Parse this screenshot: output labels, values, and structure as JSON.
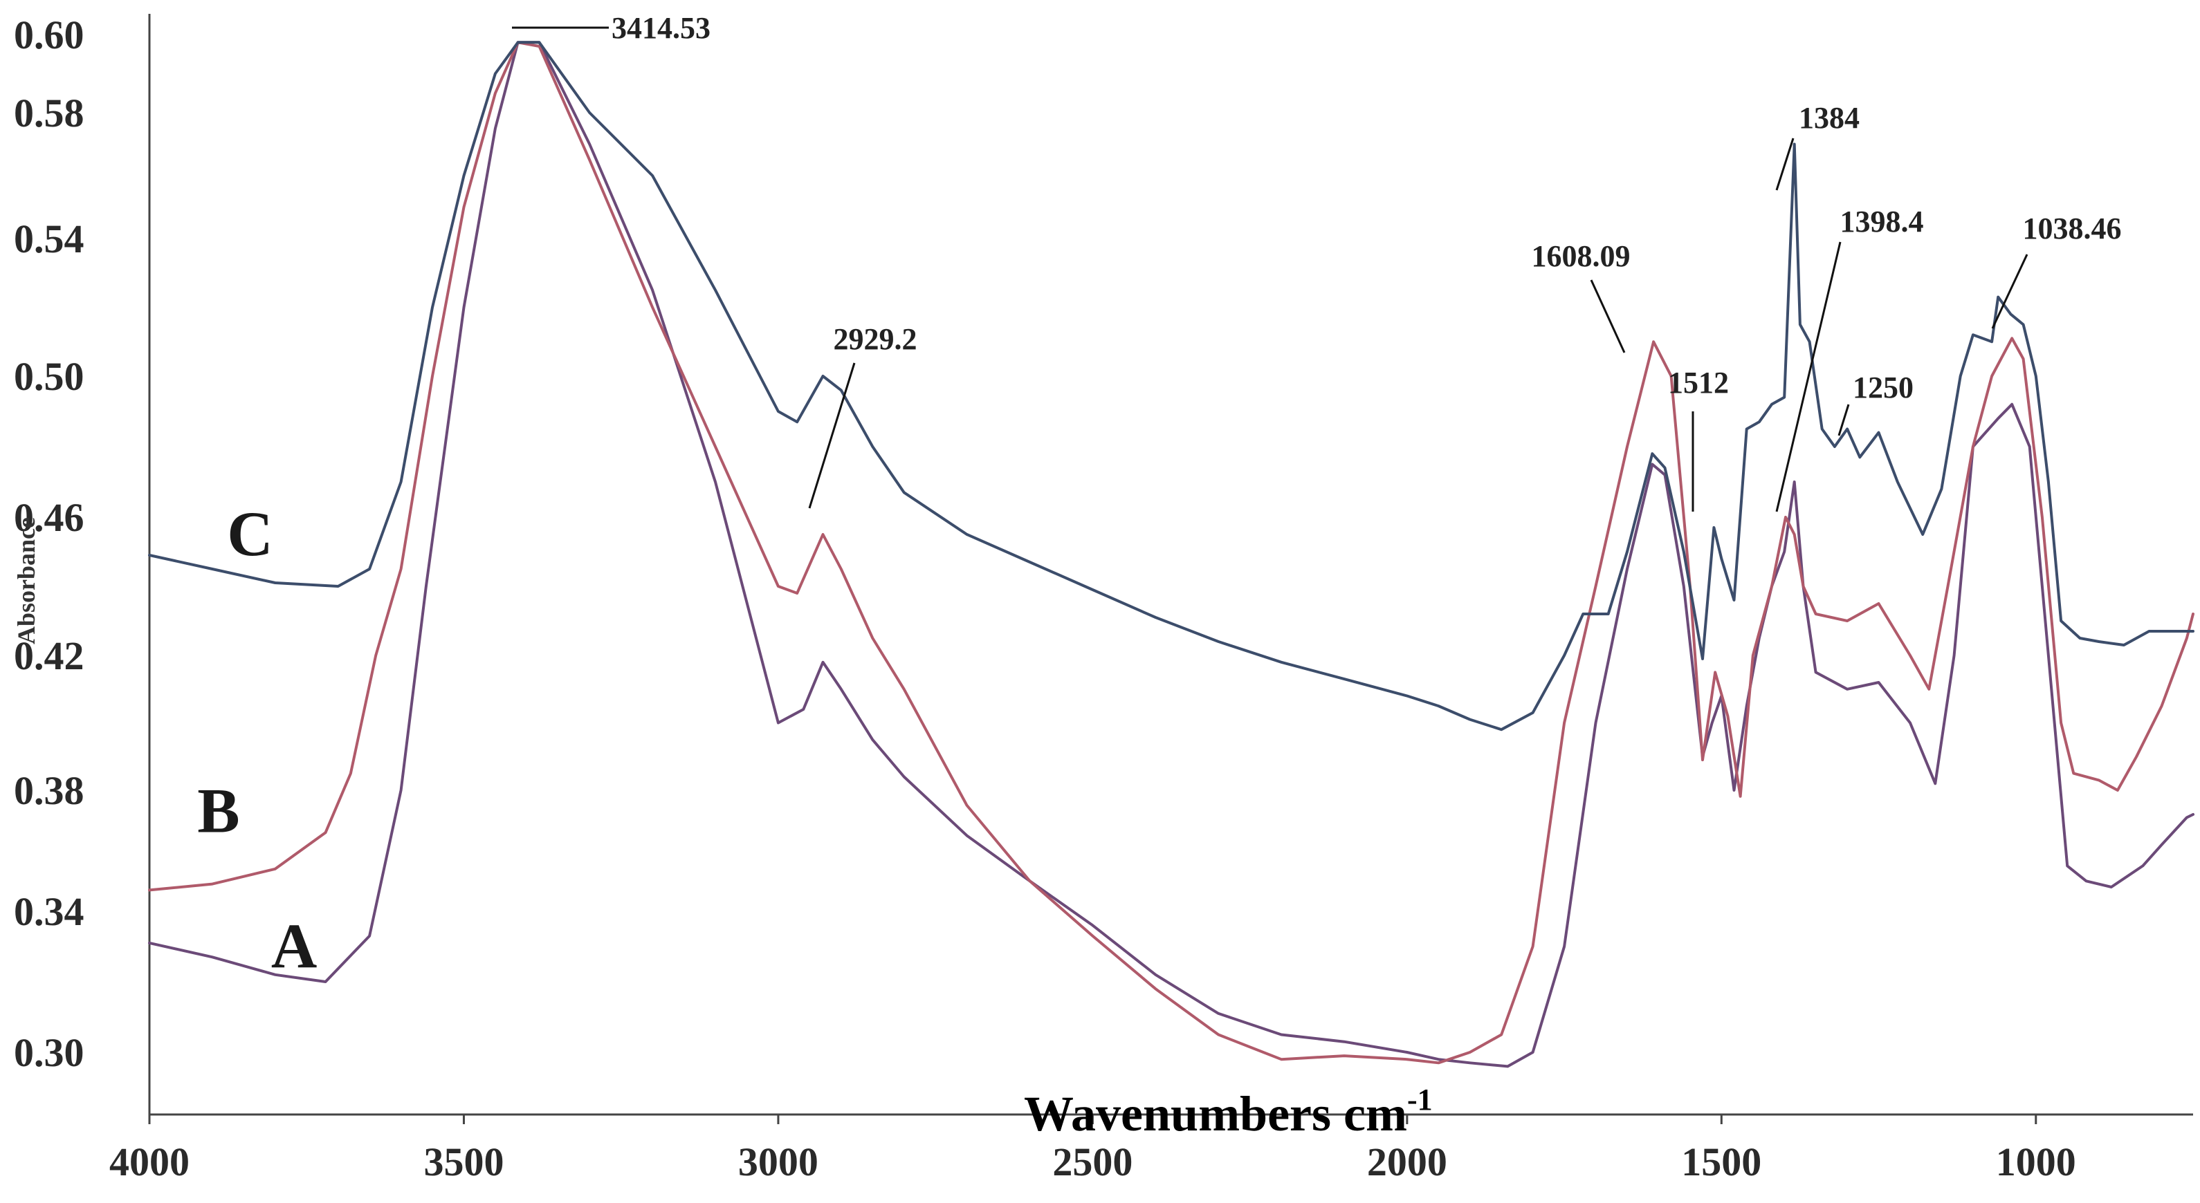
{
  "chart_data": {
    "type": "line",
    "title": "",
    "xlabel": "Wavenumbers cm",
    "xlabel_superscript": "-1",
    "ylabel": "Absorbance",
    "xlim": [
      4000,
      750
    ],
    "ylim": [
      0.29,
      0.6
    ],
    "x_ticks": [
      {
        "value": 4000,
        "label": "4000"
      },
      {
        "value": 3500,
        "label": "3500"
      },
      {
        "value": 3000,
        "label": "3000"
      },
      {
        "value": 2500,
        "label": "2500"
      },
      {
        "value": 2000,
        "label": "2000"
      },
      {
        "value": 1500,
        "label": "1500"
      },
      {
        "value": 1000,
        "label": "1000"
      }
    ],
    "y_ticks": [
      {
        "value": 0.3,
        "label": "0.30"
      },
      {
        "value": 0.34,
        "label": "0.34"
      },
      {
        "value": 0.38,
        "label": "0.38"
      },
      {
        "value": 0.42,
        "label": "0.42"
      },
      {
        "value": 0.46,
        "label": "0.46"
      },
      {
        "value": 0.5,
        "label": "0.50"
      },
      {
        "value": 0.54,
        "label": "0.54"
      },
      {
        "value": 0.58,
        "label": "0.58"
      },
      {
        "value": 0.6,
        "label": "0.60"
      }
    ],
    "grid": false,
    "series": [
      {
        "name": "A",
        "color": "#6b4a78",
        "points": [
          [
            4000,
            0.331
          ],
          [
            3900,
            0.327
          ],
          [
            3800,
            0.322
          ],
          [
            3720,
            0.32
          ],
          [
            3650,
            0.333
          ],
          [
            3600,
            0.38
          ],
          [
            3560,
            0.44
          ],
          [
            3500,
            0.52
          ],
          [
            3450,
            0.575
          ],
          [
            3414,
            0.598
          ],
          [
            3380,
            0.598
          ],
          [
            3300,
            0.57
          ],
          [
            3200,
            0.525
          ],
          [
            3100,
            0.47
          ],
          [
            3000,
            0.4
          ],
          [
            2960,
            0.404
          ],
          [
            2929,
            0.418
          ],
          [
            2900,
            0.41
          ],
          [
            2850,
            0.395
          ],
          [
            2800,
            0.384
          ],
          [
            2700,
            0.365
          ],
          [
            2600,
            0.35
          ],
          [
            2500,
            0.336
          ],
          [
            2400,
            0.322
          ],
          [
            2300,
            0.311
          ],
          [
            2200,
            0.305
          ],
          [
            2100,
            0.303
          ],
          [
            2000,
            0.3
          ],
          [
            1950,
            0.298
          ],
          [
            1900,
            0.297
          ],
          [
            1840,
            0.296
          ],
          [
            1800,
            0.3
          ],
          [
            1750,
            0.33
          ],
          [
            1700,
            0.4
          ],
          [
            1650,
            0.445
          ],
          [
            1610,
            0.475
          ],
          [
            1590,
            0.472
          ],
          [
            1560,
            0.44
          ],
          [
            1530,
            0.39
          ],
          [
            1515,
            0.4
          ],
          [
            1500,
            0.408
          ],
          [
            1480,
            0.38
          ],
          [
            1460,
            0.405
          ],
          [
            1440,
            0.425
          ],
          [
            1420,
            0.44
          ],
          [
            1400,
            0.45
          ],
          [
            1384,
            0.47
          ],
          [
            1370,
            0.44
          ],
          [
            1350,
            0.415
          ],
          [
            1300,
            0.41
          ],
          [
            1250,
            0.412
          ],
          [
            1200,
            0.4
          ],
          [
            1160,
            0.382
          ],
          [
            1130,
            0.42
          ],
          [
            1100,
            0.48
          ],
          [
            1060,
            0.488
          ],
          [
            1038,
            0.492
          ],
          [
            1010,
            0.48
          ],
          [
            980,
            0.42
          ],
          [
            950,
            0.355
          ],
          [
            920,
            0.35
          ],
          [
            880,
            0.348
          ],
          [
            830,
            0.355
          ],
          [
            800,
            0.362
          ],
          [
            760,
            0.371
          ],
          [
            750,
            0.372
          ]
        ]
      },
      {
        "name": "B",
        "color": "#b05a6a",
        "points": [
          [
            4000,
            0.347
          ],
          [
            3900,
            0.349
          ],
          [
            3800,
            0.354
          ],
          [
            3720,
            0.366
          ],
          [
            3680,
            0.385
          ],
          [
            3640,
            0.42
          ],
          [
            3600,
            0.445
          ],
          [
            3550,
            0.5
          ],
          [
            3500,
            0.55
          ],
          [
            3450,
            0.585
          ],
          [
            3414,
            0.598
          ],
          [
            3380,
            0.597
          ],
          [
            3300,
            0.565
          ],
          [
            3200,
            0.52
          ],
          [
            3100,
            0.48
          ],
          [
            3000,
            0.44
          ],
          [
            2970,
            0.438
          ],
          [
            2929,
            0.455
          ],
          [
            2900,
            0.445
          ],
          [
            2850,
            0.425
          ],
          [
            2800,
            0.41
          ],
          [
            2700,
            0.375
          ],
          [
            2600,
            0.35
          ],
          [
            2500,
            0.333
          ],
          [
            2400,
            0.318
          ],
          [
            2300,
            0.305
          ],
          [
            2200,
            0.298
          ],
          [
            2100,
            0.299
          ],
          [
            2000,
            0.298
          ],
          [
            1950,
            0.297
          ],
          [
            1900,
            0.3
          ],
          [
            1850,
            0.305
          ],
          [
            1800,
            0.33
          ],
          [
            1750,
            0.4
          ],
          [
            1700,
            0.44
          ],
          [
            1650,
            0.48
          ],
          [
            1608,
            0.51
          ],
          [
            1580,
            0.5
          ],
          [
            1550,
            0.44
          ],
          [
            1530,
            0.389
          ],
          [
            1510,
            0.415
          ],
          [
            1490,
            0.402
          ],
          [
            1470,
            0.378
          ],
          [
            1450,
            0.42
          ],
          [
            1420,
            0.44
          ],
          [
            1398,
            0.46
          ],
          [
            1384,
            0.455
          ],
          [
            1370,
            0.44
          ],
          [
            1350,
            0.432
          ],
          [
            1300,
            0.43
          ],
          [
            1250,
            0.435
          ],
          [
            1200,
            0.42
          ],
          [
            1170,
            0.41
          ],
          [
            1140,
            0.44
          ],
          [
            1100,
            0.48
          ],
          [
            1070,
            0.5
          ],
          [
            1038,
            0.511
          ],
          [
            1020,
            0.505
          ],
          [
            990,
            0.46
          ],
          [
            960,
            0.4
          ],
          [
            940,
            0.385
          ],
          [
            900,
            0.383
          ],
          [
            870,
            0.38
          ],
          [
            840,
            0.39
          ],
          [
            800,
            0.405
          ],
          [
            760,
            0.425
          ],
          [
            750,
            0.432
          ]
        ]
      },
      {
        "name": "C",
        "color": "#3c4d6b",
        "points": [
          [
            4000,
            0.449
          ],
          [
            3900,
            0.445
          ],
          [
            3800,
            0.441
          ],
          [
            3700,
            0.44
          ],
          [
            3650,
            0.445
          ],
          [
            3600,
            0.47
          ],
          [
            3550,
            0.52
          ],
          [
            3500,
            0.56
          ],
          [
            3450,
            0.59
          ],
          [
            3414,
            0.598
          ],
          [
            3380,
            0.598
          ],
          [
            3300,
            0.58
          ],
          [
            3200,
            0.56
          ],
          [
            3100,
            0.525
          ],
          [
            3000,
            0.49
          ],
          [
            2970,
            0.487
          ],
          [
            2929,
            0.5
          ],
          [
            2900,
            0.496
          ],
          [
            2850,
            0.48
          ],
          [
            2800,
            0.467
          ],
          [
            2700,
            0.455
          ],
          [
            2600,
            0.447
          ],
          [
            2500,
            0.439
          ],
          [
            2400,
            0.431
          ],
          [
            2300,
            0.424
          ],
          [
            2200,
            0.418
          ],
          [
            2100,
            0.413
          ],
          [
            2000,
            0.408
          ],
          [
            1950,
            0.405
          ],
          [
            1900,
            0.401
          ],
          [
            1850,
            0.398
          ],
          [
            1800,
            0.403
          ],
          [
            1750,
            0.42
          ],
          [
            1720,
            0.432
          ],
          [
            1680,
            0.432
          ],
          [
            1650,
            0.45
          ],
          [
            1610,
            0.478
          ],
          [
            1590,
            0.474
          ],
          [
            1560,
            0.45
          ],
          [
            1530,
            0.419
          ],
          [
            1512,
            0.457
          ],
          [
            1500,
            0.448
          ],
          [
            1480,
            0.436
          ],
          [
            1460,
            0.485
          ],
          [
            1440,
            0.487
          ],
          [
            1420,
            0.492
          ],
          [
            1400,
            0.494
          ],
          [
            1384,
            0.57
          ],
          [
            1375,
            0.515
          ],
          [
            1360,
            0.51
          ],
          [
            1340,
            0.485
          ],
          [
            1320,
            0.48
          ],
          [
            1300,
            0.485
          ],
          [
            1280,
            0.477
          ],
          [
            1250,
            0.484
          ],
          [
            1220,
            0.47
          ],
          [
            1180,
            0.455
          ],
          [
            1150,
            0.468
          ],
          [
            1120,
            0.5
          ],
          [
            1100,
            0.512
          ],
          [
            1070,
            0.51
          ],
          [
            1060,
            0.523
          ],
          [
            1040,
            0.518
          ],
          [
            1020,
            0.515
          ],
          [
            1000,
            0.5
          ],
          [
            980,
            0.47
          ],
          [
            960,
            0.43
          ],
          [
            930,
            0.425
          ],
          [
            900,
            0.424
          ],
          [
            860,
            0.423
          ],
          [
            820,
            0.427
          ],
          [
            780,
            0.427
          ],
          [
            750,
            0.427
          ]
        ]
      }
    ],
    "series_labels": [
      {
        "text": "A",
        "x": 3770,
        "y": 0.33
      },
      {
        "text": "B",
        "x": 3890,
        "y": 0.373
      },
      {
        "text": "C",
        "x": 3840,
        "y": 0.455
      }
    ],
    "annotations": [
      {
        "text": "3414.53",
        "x": 3414,
        "y": 0.598
      },
      {
        "text": "2929.2",
        "x": 2929,
        "y": 0.456
      },
      {
        "text": "1608.09",
        "x": 1608,
        "y": 0.51
      },
      {
        "text": "1512",
        "x": 1512,
        "y": 0.457
      },
      {
        "text": "1384",
        "x": 1384,
        "y": 0.56
      },
      {
        "text": "1398.4",
        "x": 1398,
        "y": 0.46
      },
      {
        "text": "1250",
        "x": 1262,
        "y": 0.485
      },
      {
        "text": "1038.46",
        "x": 1038,
        "y": 0.511
      }
    ]
  }
}
